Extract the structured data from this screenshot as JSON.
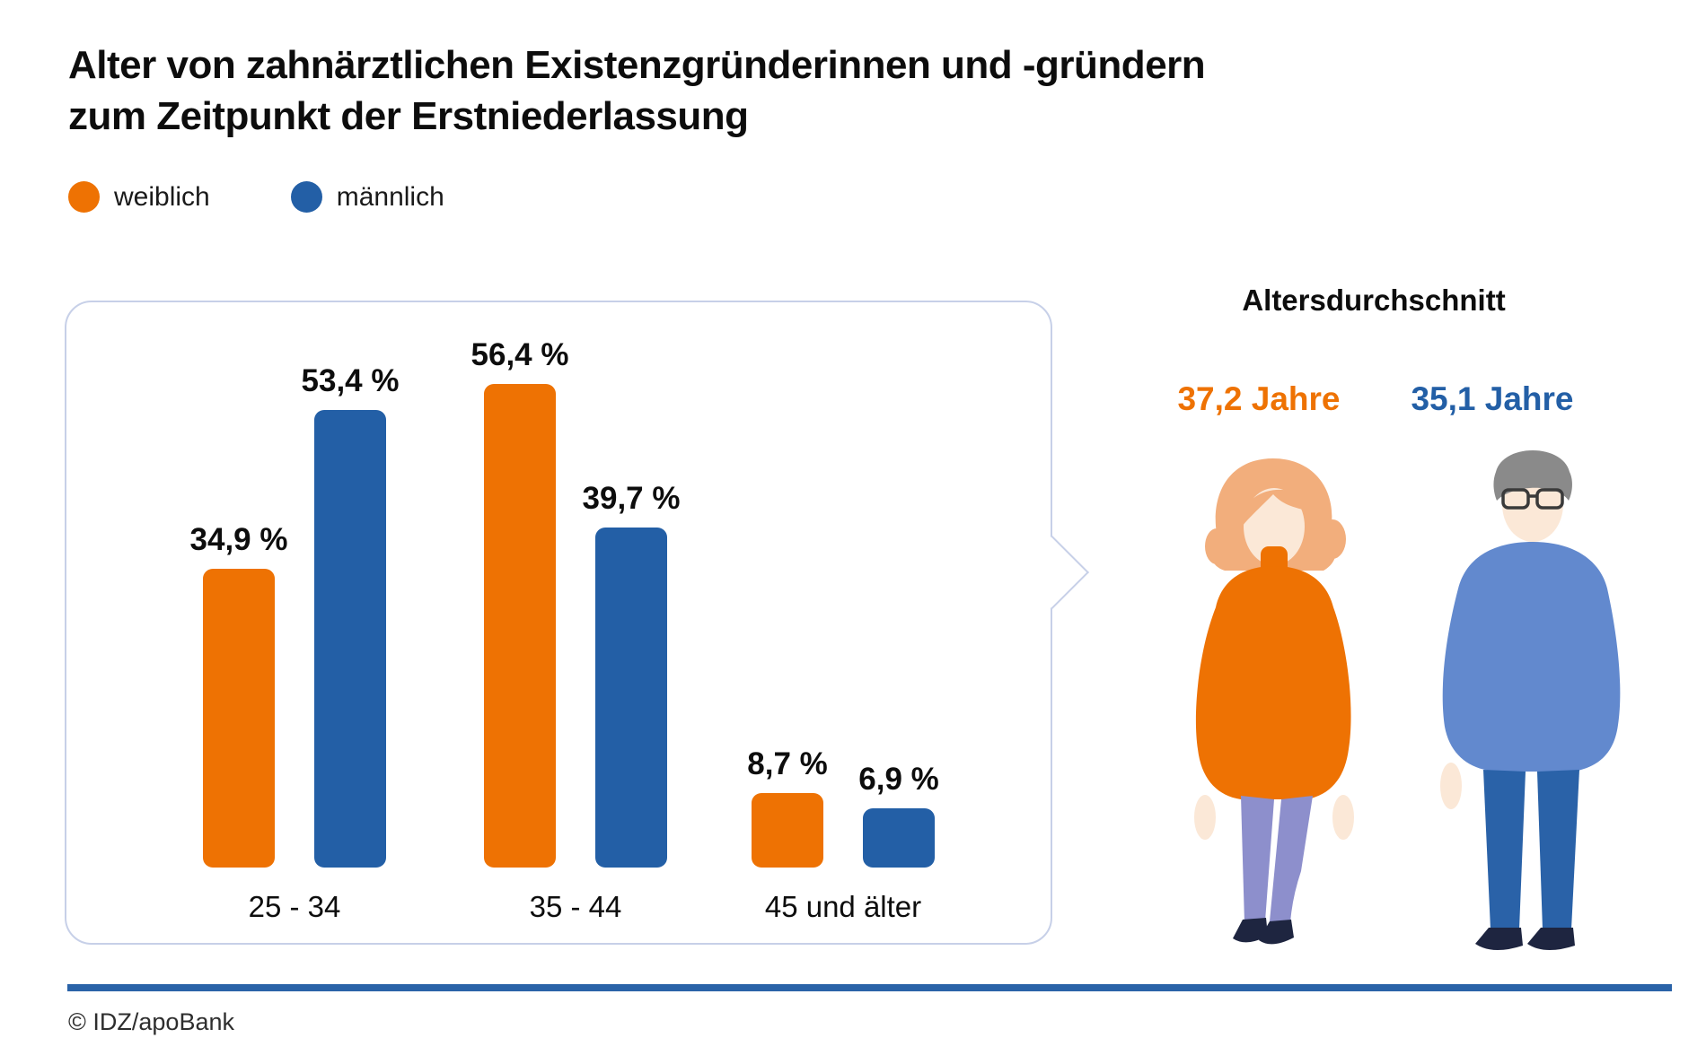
{
  "title": {
    "line1": "Alter von zahnärztlichen Existenzgründerinnen und -gründern",
    "line2": "zum Zeitpunkt der Erstniederlassung"
  },
  "legend": [
    {
      "label": "weiblich",
      "color": "#ee7203"
    },
    {
      "label": "männlich",
      "color": "#235fa6"
    }
  ],
  "chart_data": {
    "type": "bar",
    "title": "Alter von zahnärztlichen Existenzgründerinnen und -gründern zum Zeitpunkt der Erstniederlassung",
    "categories": [
      "25 - 34",
      "35 - 44",
      "45 und älter"
    ],
    "series": [
      {
        "name": "weiblich",
        "color": "#ee7203",
        "values": [
          34.9,
          56.4,
          8.7
        ],
        "labels": [
          "34,9 %",
          "56,4 %",
          "8,7 %"
        ]
      },
      {
        "name": "männlich",
        "color": "#235fa6",
        "values": [
          53.4,
          39.7,
          6.9
        ],
        "labels": [
          "53,4 %",
          "39,7 %",
          "6,9 %"
        ]
      }
    ],
    "unit": "%",
    "ylim": [
      0,
      60
    ],
    "grid": false,
    "axes_shown": false,
    "legend_position": "top-left",
    "value_labels_shown": true
  },
  "average": {
    "heading": "Altersdurchschnitt",
    "female": {
      "value": "37,2 Jahre",
      "color": "#ee7203"
    },
    "male": {
      "value": "35,1 Jahre",
      "color": "#235fa6"
    }
  },
  "figures": {
    "female_colors": {
      "hair": "#f2ae7c",
      "skin": "#fbe8d7",
      "sweater": "#ee7203",
      "pants": "#8d8fcc",
      "shoes": "#1e2540"
    },
    "male_colors": {
      "hair": "#8a8a8a",
      "skin": "#fbe8d7",
      "sweater": "#6289ce",
      "pants": "#2a62a8",
      "shoes": "#1e2540",
      "collar": "#ffffff"
    }
  },
  "footer": {
    "copyright": "© IDZ/apoBank",
    "rule_color": "#2a63a8"
  }
}
